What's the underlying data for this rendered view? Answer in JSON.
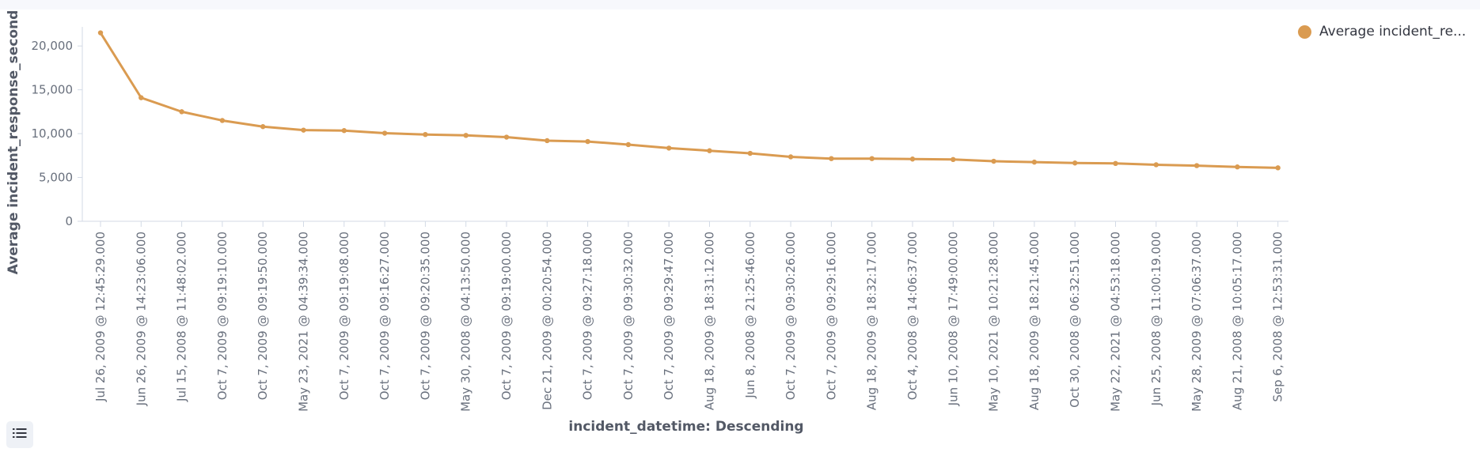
{
  "chart_data": {
    "type": "line",
    "xlabel": "incident_datetime: Descending",
    "ylabel": "Average incident_response_second",
    "ylim": [
      0,
      22000
    ],
    "yticks": [
      0,
      5000,
      10000,
      15000,
      20000
    ],
    "ytick_labels": [
      "0",
      "5,000",
      "10,000",
      "15,000",
      "20,000"
    ],
    "grid": false,
    "legend_position": "top-right",
    "categories": [
      "Jul 26, 2009 @ 12:45:29.000",
      "Jun 26, 2009 @ 14:23:06.000",
      "Jul 15, 2008 @ 11:48:02.000",
      "Oct 7, 2009 @ 09:19:10.000",
      "Oct 7, 2009 @ 09:19:50.000",
      "May 23, 2021 @ 04:39:34.000",
      "Oct 7, 2009 @ 09:19:08.000",
      "Oct 7, 2009 @ 09:16:27.000",
      "Oct 7, 2009 @ 09:20:35.000",
      "May 30, 2008 @ 04:13:50.000",
      "Oct 7, 2009 @ 09:19:00.000",
      "Dec 21, 2009 @ 00:20:54.000",
      "Oct 7, 2009 @ 09:27:18.000",
      "Oct 7, 2009 @ 09:30:32.000",
      "Oct 7, 2009 @ 09:29:47.000",
      "Aug 18, 2009 @ 18:31:12.000",
      "Jun 8, 2008 @ 21:25:46.000",
      "Oct 7, 2009 @ 09:30:26.000",
      "Oct 7, 2009 @ 09:29:16.000",
      "Aug 18, 2009 @ 18:32:17.000",
      "Oct 4, 2008 @ 14:06:37.000",
      "Jun 10, 2008 @ 17:49:00.000",
      "May 10, 2021 @ 10:21:28.000",
      "Aug 18, 2009 @ 18:21:45.000",
      "Oct 30, 2008 @ 06:32:51.000",
      "May 22, 2021 @ 04:53:18.000",
      "Jun 25, 2008 @ 11:00:19.000",
      "May 28, 2009 @ 07:06:37.000",
      "Aug 21, 2008 @ 10:05:17.000",
      "Sep 6, 2008 @ 12:53:31.000"
    ],
    "series": [
      {
        "name": "Average incident_re...",
        "color": "#da9b51",
        "values": [
          21500,
          14100,
          12500,
          11500,
          10800,
          10400,
          10350,
          10050,
          9900,
          9800,
          9600,
          9200,
          9100,
          8750,
          8350,
          8050,
          7750,
          7350,
          7150,
          7150,
          7100,
          7050,
          6850,
          6750,
          6650,
          6600,
          6450,
          6350,
          6200,
          6100
        ]
      }
    ]
  },
  "legend": {
    "label": "Average incident_re...",
    "color": "#da9b51"
  },
  "controls": {
    "legend_toggle_icon": "list-icon"
  }
}
